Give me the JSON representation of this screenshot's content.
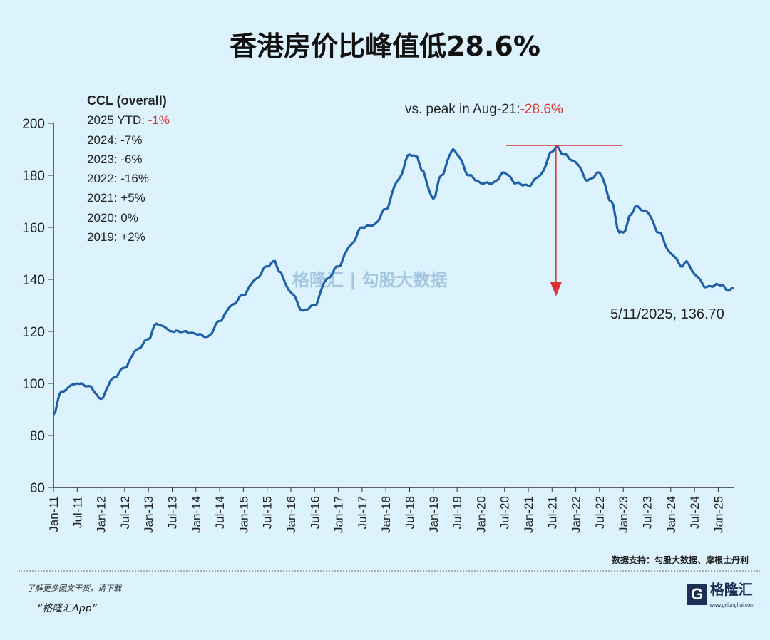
{
  "title": "香港房价比峰值低28.6%",
  "notes": {
    "heading": "CCL (overall)",
    "items": [
      {
        "label": "2025 YTD: ",
        "value": "-1%",
        "highlight": true
      },
      {
        "label": "2024: ",
        "value": "-7%"
      },
      {
        "label": "2023: ",
        "value": "-6%"
      },
      {
        "label": "2022: ",
        "value": "-16%"
      },
      {
        "label": "2021: ",
        "value": "+5%"
      },
      {
        "label": "2020: ",
        "value": "0%"
      },
      {
        "label": "2019: ",
        "value": "+2%"
      }
    ]
  },
  "peak_annotation": {
    "label": "vs. peak in Aug-21:",
    "value": "-28.6%"
  },
  "end_label": "5/11/2025, 136.70",
  "watermark": {
    "left": "格隆汇",
    "right": "勾股大数据",
    "url": "www.gogudata.com"
  },
  "source": "数据支持：勾股大数据、摩根士丹利",
  "promo": {
    "line1": "了解更多图文干货，请下载",
    "line2": "“格隆汇App”"
  },
  "logo": {
    "name": "格隆汇",
    "url": "www.gelonghui.com"
  },
  "colors": {
    "line": "#1f5fa8",
    "accent": "#e0302f",
    "background": "#dcf3fd"
  },
  "chart_data": {
    "type": "line",
    "title": "香港房价比峰值低28.6%",
    "ylim": [
      60,
      200
    ],
    "yticks": [
      60,
      80,
      100,
      120,
      140,
      160,
      180,
      200
    ],
    "xticks": [
      "Jan-11",
      "Jul-11",
      "Jan-12",
      "Jul-12",
      "Jan-13",
      "Jul-13",
      "Jan-14",
      "Jul-14",
      "Jan-15",
      "Jul-15",
      "Jan-16",
      "Jul-16",
      "Jan-17",
      "Jul-17",
      "Jan-18",
      "Jul-18",
      "Jan-19",
      "Jul-19",
      "Jan-20",
      "Jul-20",
      "Jan-21",
      "Jul-21",
      "Jan-22",
      "Jul-22",
      "Jan-23",
      "Jul-23",
      "Jan-24",
      "Jul-24",
      "Jan-25"
    ],
    "grid": false,
    "series": [
      {
        "points": [
          [
            "2011-01",
            88
          ],
          [
            "2011-03",
            97
          ],
          [
            "2011-07",
            100
          ],
          [
            "2011-10",
            99
          ],
          [
            "2012-01",
            94
          ],
          [
            "2012-04",
            102
          ],
          [
            "2012-07",
            106
          ],
          [
            "2012-10",
            113
          ],
          [
            "2013-01",
            117
          ],
          [
            "2013-03",
            123
          ],
          [
            "2013-07",
            120
          ],
          [
            "2013-10",
            120
          ],
          [
            "2014-01",
            119
          ],
          [
            "2014-04",
            118
          ],
          [
            "2014-07",
            124
          ],
          [
            "2014-10",
            130
          ],
          [
            "2015-01",
            134
          ],
          [
            "2015-04",
            140
          ],
          [
            "2015-07",
            145
          ],
          [
            "2015-09",
            147
          ],
          [
            "2015-10",
            143
          ],
          [
            "2016-01",
            135
          ],
          [
            "2016-04",
            128
          ],
          [
            "2016-07",
            130
          ],
          [
            "2016-10",
            140
          ],
          [
            "2017-01",
            145
          ],
          [
            "2017-04",
            153
          ],
          [
            "2017-07",
            160
          ],
          [
            "2017-10",
            161
          ],
          [
            "2018-01",
            167
          ],
          [
            "2018-04",
            178
          ],
          [
            "2018-07",
            188
          ],
          [
            "2018-09",
            187
          ],
          [
            "2018-10",
            182
          ],
          [
            "2019-01",
            171
          ],
          [
            "2019-03",
            180
          ],
          [
            "2019-06",
            190
          ],
          [
            "2019-07",
            188
          ],
          [
            "2019-10",
            180
          ],
          [
            "2020-01",
            177
          ],
          [
            "2020-04",
            177
          ],
          [
            "2020-07",
            181
          ],
          [
            "2020-10",
            177
          ],
          [
            "2021-01",
            176
          ],
          [
            "2021-04",
            180
          ],
          [
            "2021-07",
            189
          ],
          [
            "2021-08",
            191
          ],
          [
            "2021-10",
            188
          ],
          [
            "2022-01",
            185
          ],
          [
            "2022-04",
            178
          ],
          [
            "2022-07",
            181
          ],
          [
            "2022-10",
            170
          ],
          [
            "2022-12",
            158
          ],
          [
            "2023-01",
            158
          ],
          [
            "2023-03",
            165
          ],
          [
            "2023-04",
            168
          ],
          [
            "2023-07",
            166
          ],
          [
            "2023-10",
            158
          ],
          [
            "2024-01",
            150
          ],
          [
            "2024-04",
            145
          ],
          [
            "2024-05",
            147
          ],
          [
            "2024-07",
            142
          ],
          [
            "2024-10",
            137
          ],
          [
            "2025-01",
            138
          ],
          [
            "2025-02",
            138
          ],
          [
            "2025-03",
            136
          ],
          [
            "2025-04",
            136
          ],
          [
            "2025-05",
            136.7
          ]
        ]
      }
    ],
    "peak": {
      "date": "2021-08",
      "value": 191.5
    },
    "last": {
      "date": "2025-05-11",
      "value": 136.7
    }
  }
}
